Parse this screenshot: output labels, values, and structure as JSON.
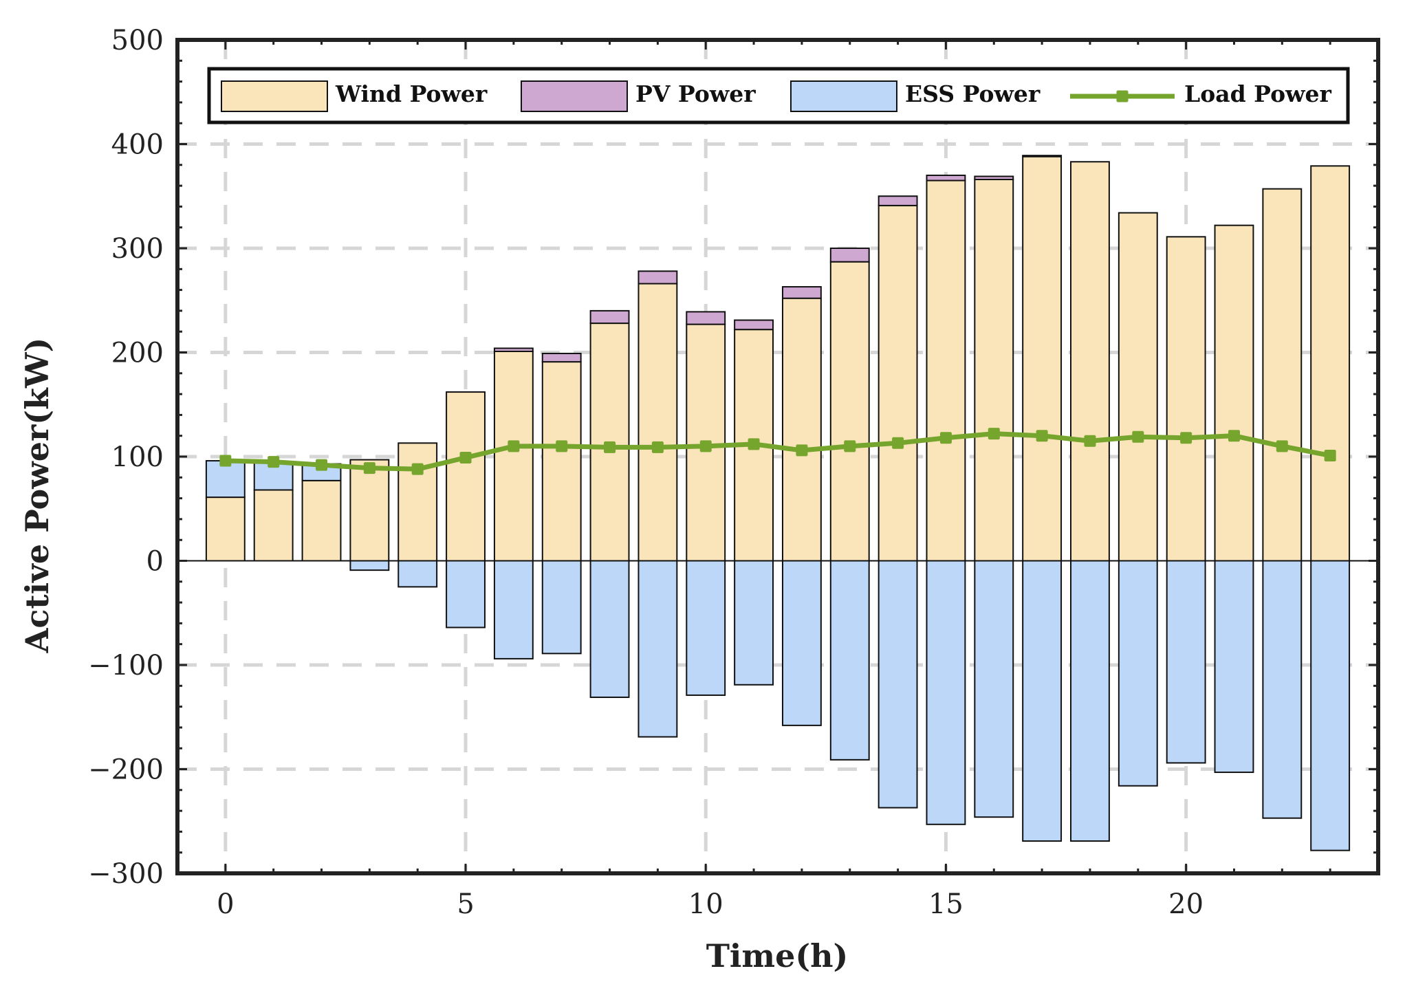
{
  "chart_data": {
    "type": "bar",
    "stacked": true,
    "xlabel": "Time(h)",
    "ylabel": "Active Power(kW)",
    "xlim": [
      -1,
      24
    ],
    "ylim": [
      -300,
      500
    ],
    "xticks": [
      0,
      5,
      10,
      15,
      20
    ],
    "yticks": [
      -300,
      -200,
      -100,
      0,
      100,
      200,
      300,
      400,
      500
    ],
    "grid": true,
    "legend_position": "top",
    "x": [
      0,
      1,
      2,
      3,
      4,
      5,
      6,
      7,
      8,
      9,
      10,
      11,
      12,
      13,
      14,
      15,
      16,
      17,
      18,
      19,
      20,
      21,
      22,
      23
    ],
    "series": [
      {
        "name": "Wind Power",
        "type": "bar",
        "color": "#fae5bb",
        "values": [
          61,
          68,
          77,
          97,
          113,
          162,
          201,
          191,
          228,
          266,
          227,
          222,
          252,
          287,
          341,
          365,
          366,
          388,
          383,
          334,
          311,
          322,
          357,
          379
        ]
      },
      {
        "name": "PV Power",
        "type": "bar",
        "color": "#cfa8d2",
        "values": [
          0,
          0,
          0,
          0,
          0,
          0,
          3,
          8,
          12,
          12,
          12,
          9,
          11,
          13,
          9,
          5,
          3,
          1,
          0,
          0,
          0,
          0,
          0,
          0
        ]
      },
      {
        "name": "ESS Power",
        "type": "bar",
        "color": "#bcd7f8",
        "values": [
          35,
          27,
          16,
          -9,
          -25,
          -64,
          -94,
          -89,
          -131,
          -169,
          -129,
          -119,
          -158,
          -191,
          -237,
          -253,
          -246,
          -269,
          -269,
          -216,
          -194,
          -203,
          -247,
          -278
        ]
      },
      {
        "name": "Load Power",
        "type": "line",
        "color": "#76a52d",
        "values": [
          96,
          95,
          92,
          89,
          88,
          99,
          110,
          110,
          109,
          109,
          110,
          112,
          106,
          110,
          113,
          118,
          122,
          120,
          115,
          119,
          118,
          120,
          110,
          101
        ]
      }
    ]
  }
}
